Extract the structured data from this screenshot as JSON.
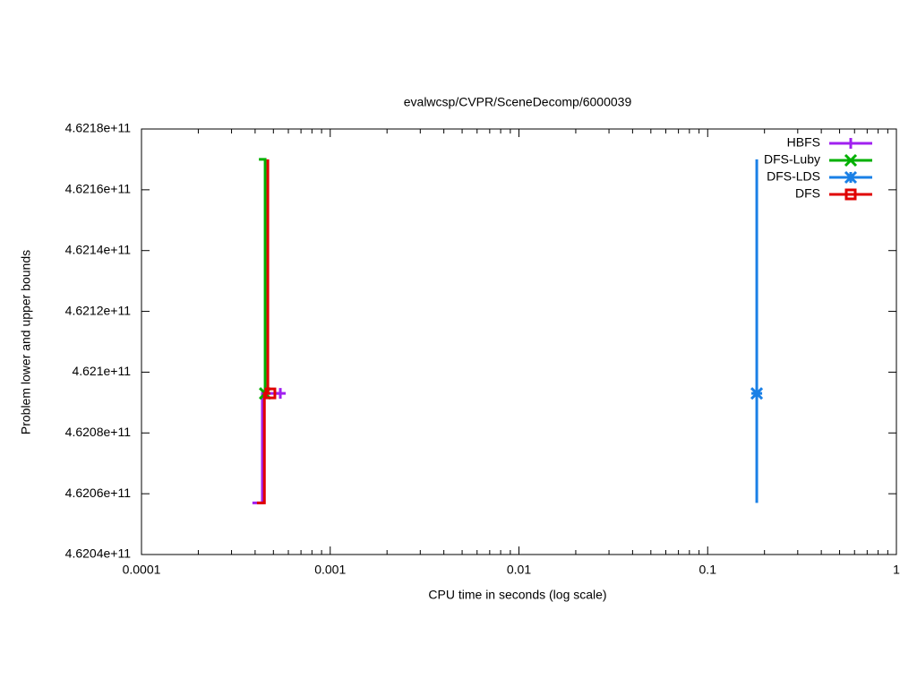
{
  "chart_data": {
    "type": "line",
    "title": "evalwcsp/CVPR/SceneDecomp/6000039",
    "x_label": "CPU time in seconds (log scale)",
    "y_label": "Problem lower and upper bounds",
    "x_log": true,
    "grid": false,
    "legend": "top-right",
    "xlim": [
      0.0001,
      1
    ],
    "xticks": [
      0.0001,
      0.001,
      0.01,
      0.1,
      1
    ],
    "ylim": [
      462040000000,
      462180000000
    ],
    "yticks": [
      {
        "value": 462040000000,
        "label": "4.6204e+11"
      },
      {
        "value": 462060000000,
        "label": "4.6206e+11"
      },
      {
        "value": 462080000000,
        "label": "4.6208e+11"
      },
      {
        "value": 462100000000,
        "label": "4.621e+11"
      },
      {
        "value": 462120000000,
        "label": "4.6212e+11"
      },
      {
        "value": 462140000000,
        "label": "4.6214e+11"
      },
      {
        "value": 462160000000,
        "label": "4.6216e+11"
      },
      {
        "value": 462180000000,
        "label": "4.6218e+11"
      }
    ],
    "series": [
      {
        "name": "HBFS",
        "color": "#a020f0",
        "marker": "plus",
        "x": [
          0.000387,
          0.000437,
          0.000437,
          0.000544
        ],
        "values": [
          462057000000,
          462057000000,
          462093000000,
          462093000000
        ]
      },
      {
        "name": "DFS-Luby",
        "color": "#00b000",
        "marker": "cross",
        "x": [
          0.000419,
          0.000452,
          0.000452
        ],
        "values": [
          462170000000,
          462170000000,
          462093000000
        ]
      },
      {
        "name": "DFS-LDS",
        "color": "#1a80e6",
        "marker": "star",
        "x": [
          0.182,
          0.182,
          0.182
        ],
        "values": [
          462170000000,
          462057000000,
          462093000000
        ]
      },
      {
        "name": "DFS",
        "color": "#e00000",
        "marker": "square",
        "x": [
          0.000467,
          0.000467,
          null,
          0.000409,
          0.000448,
          0.000448,
          0.000482
        ],
        "values": [
          462170000000,
          462093000000,
          null,
          462057000000,
          462057000000,
          462093000000,
          462093000000
        ]
      }
    ]
  }
}
